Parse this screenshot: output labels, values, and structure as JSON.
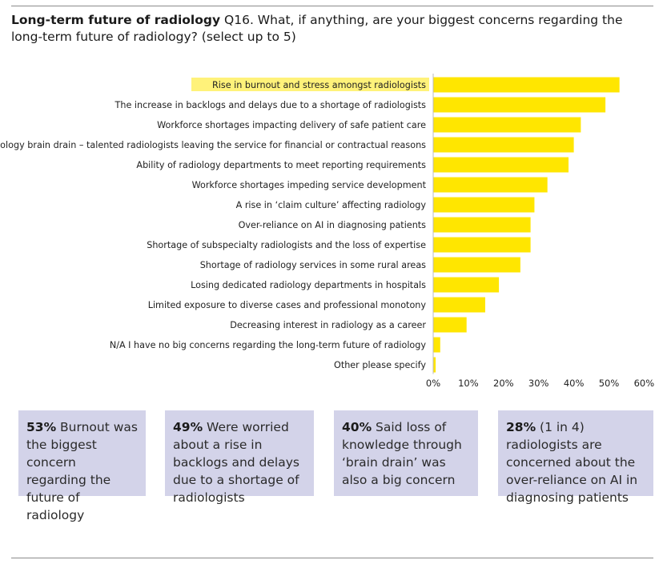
{
  "title": {
    "bold": "Long-term future of radiology",
    "text": " Q16. What, if anything, are your biggest concerns regarding the long-term future of radiology? (select up to 5)"
  },
  "colors": {
    "bar": "#ffe600",
    "highlight": "#fff27a",
    "box": "#d3d3e9"
  },
  "chart_data": {
    "type": "bar",
    "orientation": "horizontal",
    "categories": [
      "Rise in burnout and stress amongst radiologists",
      "The increase in backlogs and delays due to a shortage of radiologists",
      "Workforce shortages impacting delivery of safe patient care",
      "Radiology brain drain – talented radiologists leaving the service for financial or contractual reasons",
      "Ability of radiology departments to meet reporting requirements",
      "Workforce shortages impeding service development",
      "A rise in ‘claim culture’ affecting radiology",
      "Over-reliance on AI in diagnosing patients",
      "Shortage of subspecialty radiologists and the loss of expertise",
      "Shortage of radiology services in some rural areas",
      "Losing dedicated radiology departments in hospitals",
      "Limited exposure to diverse cases and professional monotony",
      "Decreasing interest in radiology as a career",
      "N/A I have no big concerns regarding the long-term future of radiology",
      "Other please specify"
    ],
    "values": [
      53,
      49,
      42,
      40,
      38.5,
      32.5,
      28.8,
      27.7,
      27.7,
      24.8,
      18.7,
      14.8,
      9.5,
      2.0,
      0.7
    ],
    "xlim": [
      0,
      60
    ],
    "xticks": [
      "0%",
      "10%",
      "20%",
      "30%",
      "40%",
      "50%",
      "60%"
    ],
    "highlighted_category_index": 0,
    "grid": false
  },
  "callouts": [
    {
      "bold": "53%",
      "text": " Burnout was the biggest concern regarding the future of radiology"
    },
    {
      "bold": "49%",
      "text": " Were worried about a rise in backlogs and delays due to a shortage of radiologists"
    },
    {
      "bold": "40%",
      "text": " Said loss of knowledge through ‘brain drain’ was also a big concern"
    },
    {
      "bold": "28%",
      "text": " (1 in 4) radiologists are concerned about the over-reliance on AI in diagnosing patients"
    }
  ]
}
